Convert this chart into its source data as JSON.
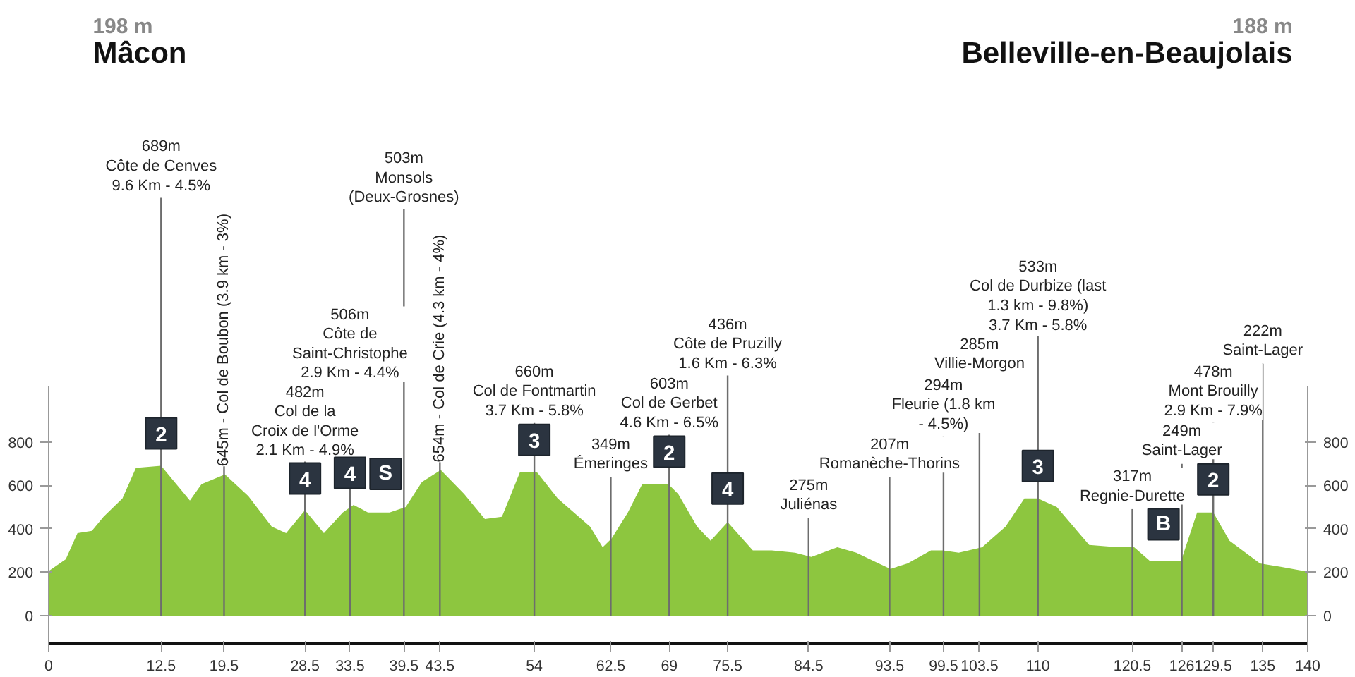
{
  "chart_data": {
    "type": "area",
    "x": [
      0,
      1.9,
      3.2,
      4.8,
      6.1,
      8.2,
      9.7,
      12.5,
      14.4,
      15.7,
      17.0,
      19.6,
      22.2,
      24.8,
      26.4,
      28.5,
      30.6,
      32.7,
      33.9,
      35.5,
      37.9,
      39.7,
      41.5,
      43.6,
      46.2,
      48.5,
      50.4,
      52.4,
      54.3,
      56.6,
      60.2,
      61.6,
      62.6,
      64.4,
      66.0,
      68.9,
      70.0,
      72.1,
      73.6,
      75.5,
      76.8,
      78.3,
      80.4,
      83.0,
      84.8,
      87.7,
      89.8,
      92.3,
      93.6,
      95.5,
      98.1,
      99.4,
      101.2,
      103.8,
      106.4,
      108.5,
      110.0,
      112.1,
      115.7,
      118.9,
      120.7,
      122.5,
      125.9,
      127.7,
      129.5,
      131.3,
      134.7,
      137.0,
      139.6,
      140
    ],
    "series": [
      {
        "color": "#8dc63f",
        "values": [
          205,
          260,
          380,
          390,
          455,
          540,
          680,
          690,
          595,
          530,
          605,
          650,
          550,
          410,
          380,
          485,
          380,
          475,
          510,
          475,
          475,
          500,
          615,
          670,
          560,
          445,
          455,
          660,
          660,
          540,
          410,
          315,
          355,
          475,
          605,
          605,
          560,
          410,
          345,
          430,
          370,
          300,
          300,
          290,
          270,
          315,
          290,
          240,
          215,
          240,
          300,
          300,
          290,
          315,
          410,
          540,
          540,
          500,
          325,
          315,
          315,
          250,
          250,
          475,
          475,
          345,
          240,
          225,
          205,
          200
        ]
      }
    ],
    "xlim": [
      0,
      140
    ],
    "xticks": [
      0,
      12.5,
      19.5,
      28.5,
      33.5,
      39.5,
      43.5,
      54,
      62.5,
      69,
      75.5,
      84.5,
      93.5,
      99.5,
      103.5,
      110,
      120.5,
      126,
      129.5,
      135,
      140
    ],
    "ylim": [
      -130,
      1060
    ],
    "yticks": [
      0,
      200,
      400,
      600,
      800
    ],
    "y2lim": [
      -130,
      1060
    ],
    "y2ticks": [
      0,
      200,
      400,
      600,
      800
    ],
    "ref_lines": [
      {
        "axis": "x",
        "value": 12.5,
        "label": "689m\nCôte de Cenves\n9.6 Km - 4.5%"
      },
      {
        "axis": "x",
        "value": 19.5,
        "label": "645m - Col de Boubon (3.9 km - 3%)"
      },
      {
        "axis": "x",
        "value": 28.5,
        "label": "482m\nCol de la\nCroix de l'Orme\n2.1 Km - 4.9%"
      },
      {
        "axis": "x",
        "value": 33.5,
        "label": "506m\nCôte de\nSaint-Christophe\n2.9 Km - 4.4%"
      },
      {
        "axis": "x",
        "value": 39.5,
        "label": "503m\nMonsols\n(Deux-Grosnes)"
      },
      {
        "axis": "x",
        "value": 43.5,
        "label": "654m - Col de Crie (4.3 km - 4%)"
      },
      {
        "axis": "x",
        "value": 54,
        "label": "660m\nCol de Fontmartin\n3.7 Km - 5.8%"
      },
      {
        "axis": "x",
        "value": 62.5,
        "label": "349m\nÉmeringes"
      },
      {
        "axis": "x",
        "value": 69,
        "label": "603m\nCol de Gerbet\n4.6 Km - 6.5%"
      },
      {
        "axis": "x",
        "value": 75.5,
        "label": "436m\nCôte de Pruzilly\n1.6 Km - 6.3%"
      },
      {
        "axis": "x",
        "value": 84.5,
        "label": "275m\nJuliénas"
      },
      {
        "axis": "x",
        "value": 93.5,
        "label": "207m\nRomanèche-Thorins"
      },
      {
        "axis": "x",
        "value": 99.5,
        "label": "294m\nFleurie (1.8 km\n- 4.5%)"
      },
      {
        "axis": "x",
        "value": 103.5,
        "label": "285m\nVillie-Morgon"
      },
      {
        "axis": "x",
        "value": 110,
        "label": "533m\nCol de Durbize (last\n1.3 km - 9.8%)\n3.7 Km - 5.8%"
      },
      {
        "axis": "x",
        "value": 120.5,
        "label": "317m\nRegnie-Durette"
      },
      {
        "axis": "x",
        "value": 126,
        "label": "249m\nSaint-Lager"
      },
      {
        "axis": "x",
        "value": 129.5,
        "label": "478m\nMont Brouilly\n2.9 Km - 7.9%"
      },
      {
        "axis": "x",
        "value": 135,
        "label": "222m\nSaint-Lager"
      }
    ],
    "annotations": [
      "198 m\nMâcon",
      "188 m\nBelleville-en-Beaujolais",
      {
        "text": "2",
        "x": 12.5,
        "y": 689
      },
      {
        "text": "4",
        "x": 28.5,
        "y": 482
      },
      {
        "text": "4",
        "x": 33.5,
        "y": 506
      },
      {
        "text": "S",
        "x": 39.5,
        "y": 503
      },
      {
        "text": "3",
        "x": 54,
        "y": 660
      },
      {
        "text": "2",
        "x": 69,
        "y": 603
      },
      {
        "text": "4",
        "x": 75.5,
        "y": 436
      },
      {
        "text": "3",
        "x": 110,
        "y": 533
      },
      {
        "text": "B",
        "x": 126,
        "y": 249
      },
      {
        "text": "2",
        "x": 129.5,
        "y": 478
      }
    ],
    "grid": false
  }
}
